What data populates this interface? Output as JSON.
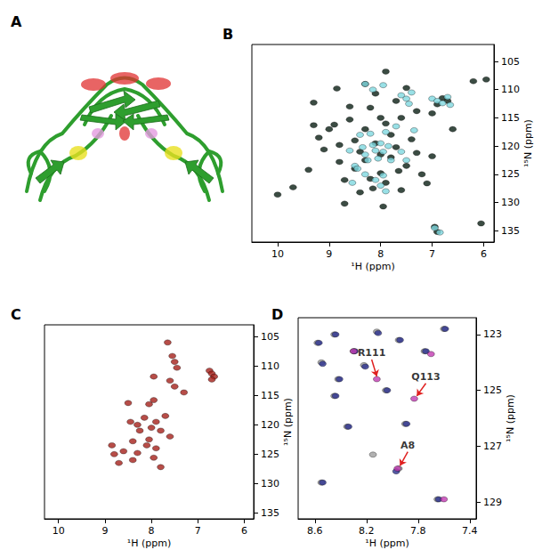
{
  "panel_a": {
    "label": "A"
  },
  "chart_data": [
    {
      "type": "scatter",
      "panel": "B",
      "x_label": "¹H (ppm)",
      "y_label": "¹⁵N (ppm)",
      "xlim": [
        10.5,
        5.8
      ],
      "xticks": [
        10,
        9,
        8,
        7,
        6
      ],
      "ylim": [
        137,
        102
      ],
      "yticks": [
        105,
        110,
        115,
        120,
        125,
        130,
        135
      ],
      "grid": false,
      "marker": "circle",
      "series": [
        {
          "color": "#0a1f14",
          "x": [
            10.0,
            9.7,
            9.4,
            9.2,
            9.1,
            9.0,
            8.9,
            8.8,
            8.7,
            8.7,
            8.6,
            8.5,
            8.5,
            8.4,
            8.3,
            8.3,
            8.2,
            8.2,
            8.1,
            8.1,
            8.0,
            8.0,
            7.9,
            7.9,
            7.8,
            7.8,
            7.7,
            7.7,
            7.6,
            7.6,
            7.5,
            7.5,
            7.4,
            7.3,
            7.3,
            7.2,
            7.0,
            6.9,
            6.8,
            6.7,
            6.6,
            6.2,
            5.95,
            6.05,
            6.95,
            6.9,
            8.6,
            8.8,
            9.3,
            8.4,
            7.95,
            8.0,
            8.3,
            7.9,
            7.0,
            7.1,
            8.85,
            9.3,
            8.15,
            7.65
          ],
          "y": [
            128.6,
            127.3,
            124.2,
            118.5,
            120.6,
            117.0,
            116.2,
            122.8,
            130.2,
            126.0,
            115.3,
            124.0,
            119.0,
            121.0,
            122.5,
            117.0,
            113.2,
            125.8,
            110.7,
            119.5,
            121.5,
            124.8,
            116.0,
            126.5,
            118.0,
            122.0,
            112.0,
            120.2,
            115.0,
            127.8,
            123.5,
            109.7,
            118.8,
            121.2,
            113.8,
            125.0,
            121.8,
            112.6,
            111.5,
            112.0,
            117.0,
            108.5,
            108.2,
            133.7,
            134.3,
            135.2,
            113.0,
            119.8,
            112.3,
            128.2,
            130.7,
            115.0,
            109.0,
            106.8,
            114.2,
            126.6,
            109.8,
            116.3,
            127.5,
            124.4
          ]
        },
        {
          "color": "#7fd8e0",
          "x": [
            8.3,
            8.15,
            7.95,
            7.6,
            7.5,
            7.45,
            7.4,
            7.0,
            6.9,
            6.8,
            6.7,
            6.65,
            8.4,
            8.35,
            8.3,
            8.25,
            8.2,
            8.15,
            8.1,
            8.05,
            8.0,
            7.95,
            7.9,
            7.85,
            7.8,
            7.7,
            7.6,
            8.6,
            8.5,
            8.45,
            8.3,
            8.1,
            7.95,
            8.0,
            7.9,
            7.5,
            7.35,
            6.95,
            6.85,
            8.55
          ],
          "y": [
            109.0,
            110.0,
            109.2,
            111.0,
            111.6,
            112.5,
            110.5,
            111.6,
            112.0,
            112.4,
            111.3,
            112.7,
            118.0,
            120.2,
            121.5,
            122.5,
            117.8,
            119.8,
            120.8,
            122.2,
            119.5,
            121.0,
            117.5,
            120.0,
            122.5,
            116.5,
            121.0,
            120.8,
            123.5,
            124.0,
            125.0,
            126.0,
            125.2,
            127.0,
            128.0,
            122.5,
            117.2,
            134.5,
            135.3,
            126.5
          ]
        }
      ]
    },
    {
      "type": "scatter",
      "panel": "C",
      "x_label": "¹H (ppm)",
      "y_label": "¹⁵N (ppm)",
      "xlim": [
        10.3,
        5.8
      ],
      "xticks": [
        10,
        9,
        8,
        7,
        6
      ],
      "ylim": [
        136,
        103
      ],
      "yticks": [
        105,
        110,
        115,
        120,
        125,
        130,
        135
      ],
      "grid": false,
      "marker": "circle",
      "series": [
        {
          "color": "#a5201a",
          "x": [
            7.65,
            7.55,
            7.5,
            7.45,
            6.75,
            6.7,
            6.65,
            6.7,
            7.95,
            7.6,
            7.5,
            7.3,
            8.05,
            7.95,
            8.5,
            8.45,
            8.3,
            8.25,
            8.15,
            7.9,
            8.0,
            7.8,
            7.7,
            8.05,
            8.4,
            8.1,
            7.9,
            7.6,
            8.85,
            8.6,
            8.3,
            7.95,
            8.4,
            8.7,
            8.8,
            7.8
          ],
          "y": [
            106.0,
            108.3,
            109.3,
            110.3,
            110.8,
            111.3,
            111.8,
            112.3,
            111.8,
            112.5,
            113.5,
            114.5,
            116.5,
            115.8,
            116.3,
            119.5,
            120.0,
            121.0,
            118.8,
            119.5,
            120.5,
            121.0,
            118.5,
            122.5,
            122.8,
            123.5,
            124.0,
            122.0,
            123.5,
            124.5,
            124.8,
            125.6,
            126.0,
            126.5,
            125.0,
            127.2
          ]
        }
      ]
    },
    {
      "type": "scatter",
      "panel": "D",
      "x_label": "¹H (ppm)",
      "y_label": "¹⁵N (ppm)",
      "xlim": [
        8.73,
        7.35
      ],
      "xticks": [
        8.6,
        8.2,
        7.8,
        7.4
      ],
      "ylim": [
        129.6,
        122.4
      ],
      "yticks": [
        123,
        125,
        127,
        129
      ],
      "grid": false,
      "marker": "circle",
      "series": [
        {
          "color": "#9e9e9e",
          "x": [
            8.58,
            8.55,
            8.45,
            8.42,
            8.3,
            8.22,
            8.12,
            8.05,
            7.95,
            7.75,
            7.6,
            8.35,
            8.15,
            7.95,
            7.65,
            8.45,
            7.9,
            8.55
          ],
          "y": [
            123.3,
            124.0,
            123.0,
            124.6,
            123.6,
            124.1,
            122.9,
            125.0,
            123.2,
            123.6,
            122.8,
            126.3,
            127.3,
            127.8,
            128.9,
            125.2,
            126.2,
            128.3
          ]
        },
        {
          "color": "#2b2f8f",
          "x": [
            8.57,
            8.54,
            8.44,
            8.41,
            8.29,
            8.21,
            8.11,
            8.04,
            7.94,
            7.74,
            7.59,
            8.34,
            7.64,
            8.44,
            7.89,
            8.54,
            7.97
          ],
          "y": [
            123.3,
            124.05,
            123.0,
            124.6,
            123.6,
            124.15,
            122.95,
            125.0,
            123.2,
            123.6,
            122.8,
            126.3,
            128.9,
            125.2,
            126.2,
            128.3,
            127.9
          ]
        },
        {
          "color": "#c23bb2",
          "x": [
            8.12,
            7.83,
            7.96,
            7.7,
            8.3,
            7.6
          ],
          "y": [
            124.6,
            125.3,
            127.8,
            123.7,
            123.6,
            128.9
          ]
        }
      ],
      "annotations": [
        {
          "text": "R111",
          "x": 8.16,
          "y": 123.9,
          "target_x": 8.12,
          "target_y": 124.5
        },
        {
          "text": "Q113",
          "x": 7.74,
          "y": 124.75,
          "target_x": 7.81,
          "target_y": 125.2
        },
        {
          "text": "A8",
          "x": 7.88,
          "y": 127.2,
          "target_x": 7.94,
          "target_y": 127.7
        }
      ]
    }
  ]
}
